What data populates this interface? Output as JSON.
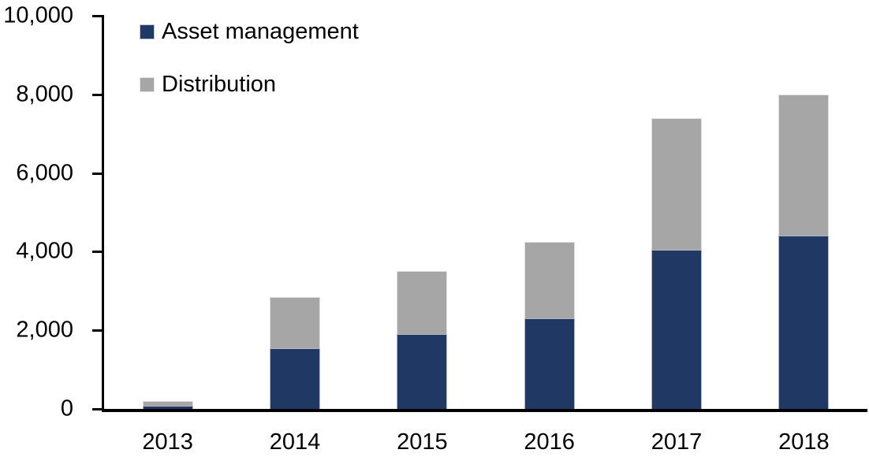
{
  "chart_data": {
    "type": "bar",
    "stacked": true,
    "title": "",
    "xlabel": "",
    "ylabel": "",
    "categories": [
      "2013",
      "2014",
      "2015",
      "2016",
      "2017",
      "2018"
    ],
    "series": [
      {
        "name": "Asset management",
        "color": "#1F3864",
        "values": [
          90,
          1550,
          1900,
          2300,
          4050,
          4400
        ]
      },
      {
        "name": "Distribution",
        "color": "#A6A6A6",
        "values": [
          110,
          1300,
          1600,
          1950,
          3350,
          3600
        ]
      }
    ],
    "stack_totals": [
      200,
      2850,
      3500,
      4250,
      7400,
      8000
    ],
    "ylim": [
      0,
      10000
    ],
    "yticks": [
      {
        "value": 0,
        "label": "0"
      },
      {
        "value": 2000,
        "label": "2,000"
      },
      {
        "value": 4000,
        "label": "4,000"
      },
      {
        "value": 6000,
        "label": "6,000"
      },
      {
        "value": 8000,
        "label": "8,000"
      },
      {
        "value": 10000,
        "label": "10,000"
      }
    ],
    "grid": false,
    "legend_position": "top-left",
    "axis_color": "#000000",
    "background_color": "#FFFFFF"
  }
}
